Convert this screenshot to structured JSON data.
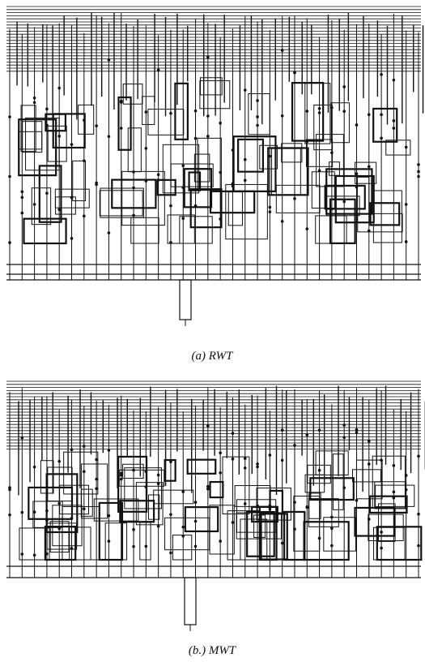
{
  "figures": [
    {
      "caption": "(a) RWT"
    },
    {
      "caption": "(b.) MWT"
    }
  ]
}
